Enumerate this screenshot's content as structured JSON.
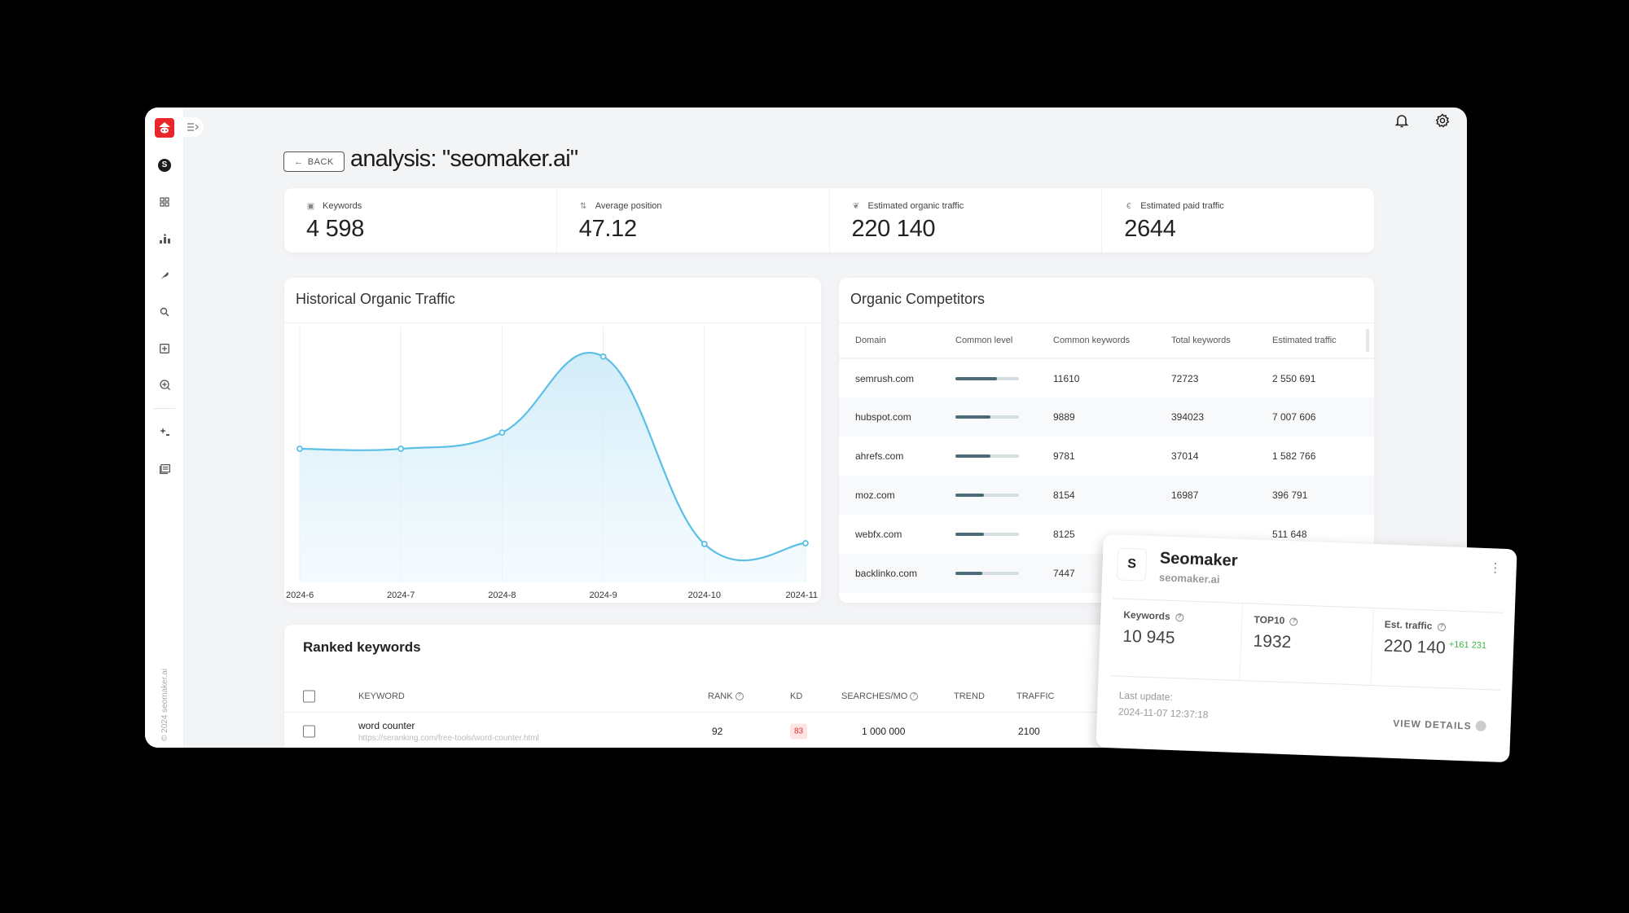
{
  "sidebar": {
    "copyright": "© 2024 seomaker.ai",
    "items": [
      {
        "name": "project-avatar",
        "icon": "S"
      },
      {
        "name": "dashboard",
        "icon": "grid-icon"
      },
      {
        "name": "rankings",
        "icon": "podium-icon"
      },
      {
        "name": "writer",
        "icon": "feather-icon"
      },
      {
        "name": "search",
        "icon": "search-icon"
      },
      {
        "name": "add-page",
        "icon": "plus-square-icon"
      },
      {
        "name": "add-search",
        "icon": "plus-circle-icon"
      },
      {
        "name": "ai-tools",
        "icon": "sparkle-icon"
      },
      {
        "name": "reports",
        "icon": "document-icon"
      }
    ]
  },
  "header": {
    "back_label": "BACK",
    "title": "analysis: \"seomaker.ai\""
  },
  "stats": [
    {
      "icon": "keyword-icon",
      "label": "Keywords",
      "value": "4 598"
    },
    {
      "icon": "position-icon",
      "label": "Average position",
      "value": "47.12"
    },
    {
      "icon": "leaf-icon",
      "label": "Estimated organic traffic",
      "value": "220 140"
    },
    {
      "icon": "euro-icon",
      "label": "Estimated paid traffic",
      "value": "2644"
    }
  ],
  "chart_card": {
    "title": "Historical Organic Traffic"
  },
  "chart_data": {
    "type": "area",
    "title": "Historical Organic Traffic",
    "categories": [
      "2024-6",
      "2024-7",
      "2024-8",
      "2024-9",
      "2024-10",
      "2024-11"
    ],
    "values": [
      181,
      181,
      203,
      306,
      52,
      53
    ],
    "xlabel": "",
    "ylabel": "",
    "note": "relative heights; no y-axis labels shown",
    "grid": "vertical",
    "color": "#5bbfe6"
  },
  "competitors": {
    "title": "Organic Competitors",
    "columns": [
      "Domain",
      "Common level",
      "Common keywords",
      "Total keywords",
      "Estimated traffic"
    ],
    "rows": [
      {
        "domain": "semrush.com",
        "level": 65,
        "common": "11610",
        "total": "72723",
        "traffic": "2 550 691"
      },
      {
        "domain": "hubspot.com",
        "level": 55,
        "common": "9889",
        "total": "394023",
        "traffic": "7 007 606"
      },
      {
        "domain": "ahrefs.com",
        "level": 55,
        "common": "9781",
        "total": "37014",
        "traffic": "1 582 766"
      },
      {
        "domain": "moz.com",
        "level": 45,
        "common": "8154",
        "total": "16987",
        "traffic": "396 791"
      },
      {
        "domain": "webfx.com",
        "level": 45,
        "common": "8125",
        "total": "",
        "traffic": "511 648"
      },
      {
        "domain": "backlinko.com",
        "level": 42,
        "common": "7447",
        "total": "",
        "traffic": ""
      }
    ]
  },
  "ranked_keywords": {
    "title": "Ranked keywords",
    "columns": {
      "keyword": "KEYWORD",
      "rank": "RANK",
      "kd": "KD",
      "searches": "SEARCHES/MO",
      "trend": "TREND",
      "traffic": "TRAFFIC"
    },
    "rows": [
      {
        "keyword": "word counter",
        "url": "https://seranking.com/free-tools/word-counter.html",
        "rank": "92",
        "kd": "83",
        "searches": "1 000 000",
        "traffic": "2100"
      }
    ]
  },
  "project_card": {
    "logo_letter": "S",
    "name": "Seomaker",
    "domain": "seomaker.ai",
    "stats": [
      {
        "label": "Keywords",
        "value": "10 945"
      },
      {
        "label": "TOP10",
        "value": "1932"
      },
      {
        "label": "Est. traffic",
        "value": "220 140",
        "delta": "+161 231"
      }
    ],
    "last_update_label": "Last update:",
    "last_update": "2024-11-07 12:37:18",
    "view_details": "VIEW DETAILS"
  },
  "colors": {
    "brand": "#e8262b",
    "chart_line": "#5bbfe6",
    "kd_hard": "#d33333",
    "positive": "#3bb54a"
  }
}
